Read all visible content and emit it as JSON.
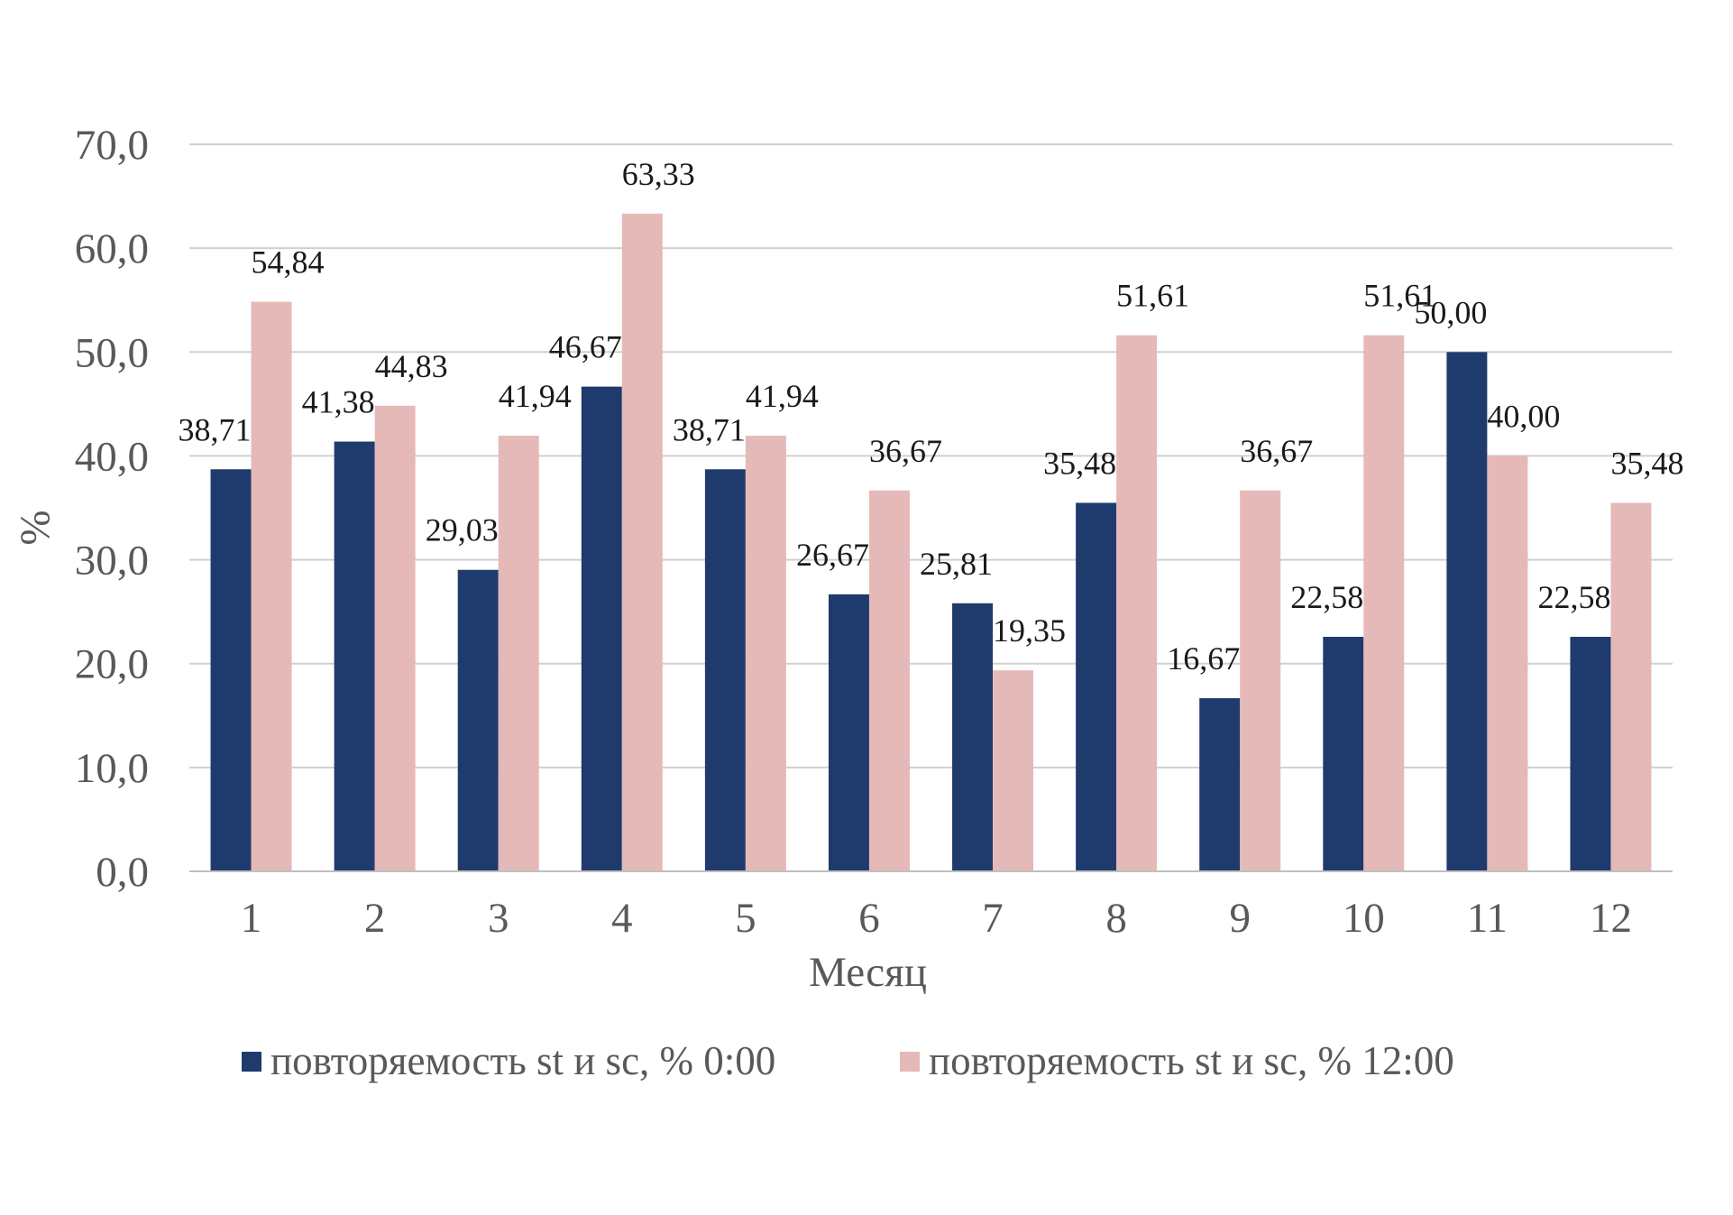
{
  "chart_data": {
    "type": "bar",
    "title": "",
    "xlabel": "Месяц",
    "ylabel": "%",
    "ylim": [
      0,
      70
    ],
    "yticks": [
      0,
      10,
      20,
      30,
      40,
      50,
      60,
      70
    ],
    "ytick_labels": [
      "0,0",
      "10,0",
      "20,0",
      "30,0",
      "40,0",
      "50,0",
      "60,0",
      "70,0"
    ],
    "grid": true,
    "legend_position": "bottom",
    "categories": [
      "1",
      "2",
      "3",
      "4",
      "5",
      "6",
      "7",
      "8",
      "9",
      "10",
      "11",
      "12"
    ],
    "series": [
      {
        "name": "повторяемость st и sc, % 0:00",
        "color": "#1f3b6e",
        "values": [
          38.71,
          41.38,
          29.03,
          46.67,
          38.71,
          26.67,
          25.81,
          35.48,
          16.67,
          22.58,
          50.0,
          22.58
        ],
        "labels": [
          "38,71",
          "41,38",
          "29,03",
          "46,67",
          "38,71",
          "26,67",
          "25,81",
          "35,48",
          "16,67",
          "22,58",
          "50,00",
          "22,58"
        ]
      },
      {
        "name": "повторяемость st и sc, % 12:00",
        "color": "#e5b9b8",
        "values": [
          54.84,
          44.83,
          41.94,
          63.33,
          41.94,
          36.67,
          19.35,
          51.61,
          36.67,
          51.61,
          40.0,
          35.48
        ],
        "labels": [
          "54,84",
          "44,83",
          "41,94",
          "63,33",
          "41,94",
          "36,67",
          "19,35",
          "51,61",
          "36,67",
          "51,61",
          "40,00",
          "35,48"
        ]
      }
    ]
  }
}
